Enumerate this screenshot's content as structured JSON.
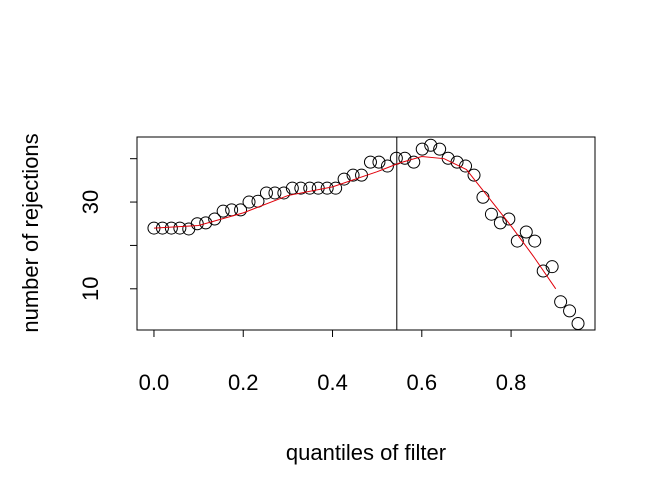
{
  "chart_data": {
    "type": "scatter",
    "xlabel": "quantiles of filter",
    "ylabel": "number of rejections",
    "xlim": [
      -0.038,
      0.988
    ],
    "ylim": [
      0.5,
      45
    ],
    "xticks": [
      {
        "value": 0,
        "label": "0.0"
      },
      0.2,
      0.4,
      0.6,
      0.8
    ],
    "yticks": [
      10,
      30
    ],
    "yticks_unlabeled": [
      20,
      40
    ],
    "vline": 0.544,
    "series": [
      {
        "kind": "points",
        "color": "#000000",
        "x": [
          0,
          0.019,
          0.039,
          0.058,
          0.078,
          0.097,
          0.116,
          0.136,
          0.155,
          0.174,
          0.194,
          0.213,
          0.233,
          0.252,
          0.271,
          0.291,
          0.31,
          0.329,
          0.349,
          0.368,
          0.388,
          0.407,
          0.426,
          0.446,
          0.465,
          0.485,
          0.504,
          0.523,
          0.543,
          0.562,
          0.582,
          0.601,
          0.62,
          0.64,
          0.659,
          0.679,
          0.698,
          0.717,
          0.737,
          0.756,
          0.776,
          0.795,
          0.814,
          0.834,
          0.853,
          0.872,
          0.892,
          0.911,
          0.931,
          0.95
        ],
        "values": [
          24,
          24,
          24,
          24,
          23.8,
          25,
          25.2,
          26.1,
          27.9,
          28.2,
          28.2,
          30,
          30.2,
          32.1,
          32.1,
          32.1,
          33.2,
          33.2,
          33.2,
          33.2,
          33.2,
          33.2,
          35.3,
          36.2,
          36.2,
          39.2,
          39.2,
          38.3,
          40.1,
          40.1,
          39.2,
          42.2,
          43.1,
          42.2,
          40.1,
          39.2,
          38.3,
          36.2,
          31.1,
          27.2,
          25.2,
          26.1,
          21,
          23.1,
          21,
          14.1,
          15.1,
          7,
          4.9,
          2
        ]
      },
      {
        "kind": "line",
        "color": "#e0000a",
        "x": [
          0,
          0.1,
          0.2,
          0.3,
          0.4,
          0.5,
          0.55,
          0.6,
          0.65,
          0.7,
          0.75,
          0.8,
          0.85,
          0.9
        ],
        "values": [
          24,
          24.6,
          27.5,
          31.5,
          33.5,
          37,
          39,
          40.5,
          40,
          37.5,
          31,
          24.5,
          17.5,
          10
        ]
      }
    ]
  }
}
